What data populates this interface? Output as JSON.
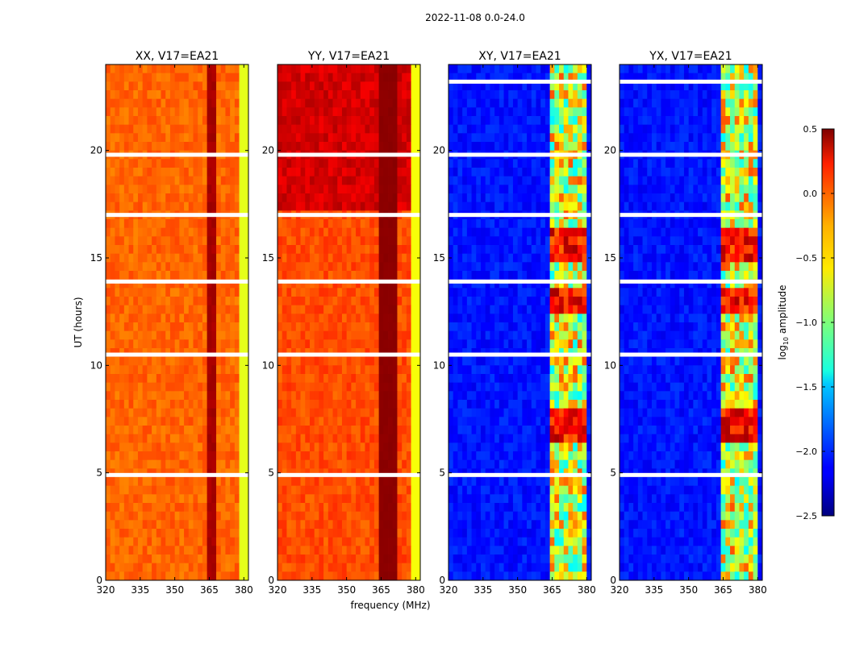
{
  "chart_data": {
    "type": "heatmap",
    "title": "2022-11-08 0.0-24.0",
    "xlabel": "frequency (MHz)",
    "ylabel": "UT (hours)",
    "xlim": [
      320,
      382
    ],
    "ylim": [
      0,
      24
    ],
    "x_ticks": [
      "320",
      "335",
      "350",
      "365",
      "380"
    ],
    "x_tick_values": [
      320,
      335,
      350,
      365,
      380
    ],
    "y_ticks": [
      "0",
      "5",
      "10",
      "15",
      "20"
    ],
    "y_tick_values": [
      0,
      5,
      10,
      15,
      20
    ],
    "panels": [
      {
        "title": "XX, V17=EA21",
        "colormap_range": [
          -0.6,
          0.35
        ],
        "rfi_band_mhz": [
          363,
          369
        ],
        "flag_gaps_hours": [
          17.0,
          19.8,
          13.9,
          10.5,
          4.9
        ]
      },
      {
        "title": "YY, V17=EA21",
        "colormap_range": [
          -0.55,
          0.45
        ],
        "rfi_band_mhz": [
          363,
          372
        ],
        "flag_gaps_hours": [
          17.0,
          19.8,
          13.9,
          10.5,
          4.9
        ]
      },
      {
        "title": "XY, V17=EA21",
        "colormap_range": [
          -2.5,
          -1.6
        ],
        "rfi_band_mhz": [
          363,
          380
        ],
        "flag_gaps_hours": [
          23.2,
          19.8,
          17.0,
          13.9,
          10.5,
          4.9
        ]
      },
      {
        "title": "YX, V17=EA21",
        "colormap_range": [
          -2.5,
          -1.6
        ],
        "rfi_band_mhz": [
          363,
          380
        ],
        "flag_gaps_hours": [
          23.2,
          19.8,
          17.0,
          13.9,
          10.5,
          4.9
        ]
      }
    ],
    "colorbar": {
      "label_prefix": "log",
      "label_sub": "10",
      "label_suffix": " amplitude",
      "range": [
        -2.5,
        0.5
      ],
      "ticks": [
        "0.5",
        "0.0",
        "−0.5",
        "−1.0",
        "−1.5",
        "−2.0",
        "−2.5"
      ],
      "tick_values": [
        0.5,
        0.0,
        -0.5,
        -1.0,
        -1.5,
        -2.0,
        -2.5
      ],
      "colormap": "jet"
    }
  }
}
